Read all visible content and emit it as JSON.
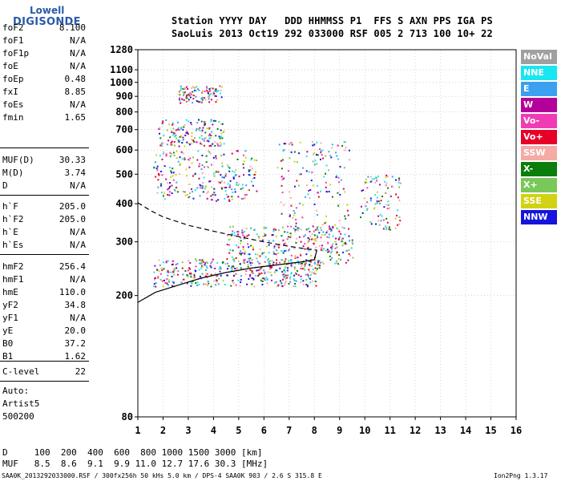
{
  "logo": {
    "line1": "Lowell",
    "line2": "DIGISONDE"
  },
  "header": {
    "line1": "Station YYYY DAY   DDD HHMMSS P1  FFS S AXN PPS IGA PS",
    "line2": "SaoLuis 2013 Oct19 292 033000 RSF 005 2 713 100 10+ 22"
  },
  "params_group1": [
    {
      "k": "foF2",
      "v": "8.100"
    },
    {
      "k": "foF1",
      "v": "N/A"
    },
    {
      "k": "foF1p",
      "v": "N/A"
    },
    {
      "k": "foE",
      "v": "N/A"
    },
    {
      "k": "foEp",
      "v": "0.48"
    },
    {
      "k": "fxI",
      "v": "8.85"
    },
    {
      "k": "foEs",
      "v": "N/A"
    },
    {
      "k": "fmin",
      "v": "1.65"
    }
  ],
  "params_group2": [
    {
      "k": "MUF(D)",
      "v": "30.33"
    },
    {
      "k": "M(D)",
      "v": "3.74"
    },
    {
      "k": "D",
      "v": "N/A"
    }
  ],
  "params_group3": [
    {
      "k": "h`F",
      "v": "205.0"
    },
    {
      "k": "h`F2",
      "v": "205.0"
    },
    {
      "k": "h`E",
      "v": "N/A"
    },
    {
      "k": "h`Es",
      "v": "N/A"
    }
  ],
  "params_group4": [
    {
      "k": "hmF2",
      "v": "256.4"
    },
    {
      "k": "hmF1",
      "v": "N/A"
    },
    {
      "k": "hmE",
      "v": "110.0"
    },
    {
      "k": "yF2",
      "v": "34.8"
    },
    {
      "k": "yF1",
      "v": "N/A"
    },
    {
      "k": "yE",
      "v": "20.0"
    },
    {
      "k": "B0",
      "v": "37.2"
    },
    {
      "k": "B1",
      "v": "1.62"
    }
  ],
  "c_level": {
    "k": "C-level",
    "v": "22"
  },
  "auto_info": {
    "line1": "Auto:",
    "line2": "Artist5",
    "line3": "500200"
  },
  "legend": [
    {
      "label": "NoVal",
      "color": "#a0a0a0"
    },
    {
      "label": "NNE",
      "color": "#19e6f0"
    },
    {
      "label": "E",
      "color": "#3ca0f0"
    },
    {
      "label": "W",
      "color": "#b4009b"
    },
    {
      "label": "Vo-",
      "color": "#f03cb4"
    },
    {
      "label": "Vo+",
      "color": "#e60028"
    },
    {
      "label": "SSW",
      "color": "#f5aaa5"
    },
    {
      "label": "X-",
      "color": "#0a7d0a"
    },
    {
      "label": "X+",
      "color": "#78c85a"
    },
    {
      "label": "SSE",
      "color": "#d2d214"
    },
    {
      "label": "NNW",
      "color": "#1414dc"
    }
  ],
  "bottom": {
    "d_row": "D     100  200  400  600  800 1000 1500 3000 [km]",
    "muf_row": "MUF   8.5  8.6  9.1  9.9 11.0 12.7 17.6 30.3 [MHz]"
  },
  "footer": {
    "left": "SAA0K_2013292033000.RSF / 300fx256h 50 kHs 5.0 km / DPS-4 SAA0K 903 / 2.6 S 315.8 E",
    "right": "Ion2Png 1.3.17"
  },
  "chart_data": {
    "type": "scatter",
    "xlim": [
      1,
      16
    ],
    "ylim": [
      80,
      1280
    ],
    "x_ticks": [
      1,
      2,
      3,
      4,
      5,
      6,
      7,
      8,
      9,
      10,
      11,
      12,
      13,
      14,
      15,
      16
    ],
    "y_ticks": [
      80,
      200,
      300,
      400,
      500,
      600,
      700,
      800,
      900,
      1000,
      1100,
      1280
    ],
    "y_scale": "log",
    "grid": "dotted",
    "traces": [
      {
        "name": "profile_solid",
        "points": [
          [
            1,
            190
          ],
          [
            1.7,
            205
          ],
          [
            2.5,
            215
          ],
          [
            3.5,
            228
          ],
          [
            4.5,
            238
          ],
          [
            5.5,
            246
          ],
          [
            6.5,
            252
          ],
          [
            7.5,
            258
          ],
          [
            8.0,
            262
          ],
          [
            8.1,
            282
          ]
        ]
      },
      {
        "name": "profile_dashed",
        "points": [
          [
            1,
            403
          ],
          [
            1.5,
            380
          ],
          [
            2,
            362
          ],
          [
            3,
            340
          ],
          [
            4,
            325
          ],
          [
            5,
            312
          ],
          [
            6,
            300
          ],
          [
            7,
            290
          ],
          [
            8,
            282
          ],
          [
            8.1,
            282
          ]
        ]
      }
    ],
    "clusters": [
      {
        "x": [
          1.6,
          8.2
        ],
        "y": [
          215,
          265
        ]
      },
      {
        "x": [
          4.5,
          9.5
        ],
        "y": [
          255,
          340
        ]
      },
      {
        "x": [
          8.5,
          9.4
        ],
        "y": [
          280,
          650
        ]
      },
      {
        "x": [
          6.5,
          8.5
        ],
        "y": [
          300,
          650
        ]
      },
      {
        "x": [
          9.8,
          11.4
        ],
        "y": [
          330,
          500
        ]
      },
      {
        "x": [
          1.6,
          5.7
        ],
        "y": [
          410,
          600
        ]
      },
      {
        "x": [
          1.8,
          4.4
        ],
        "y": [
          620,
          760
        ]
      },
      {
        "x": [
          2.6,
          4.3
        ],
        "y": [
          860,
          980
        ]
      }
    ]
  }
}
